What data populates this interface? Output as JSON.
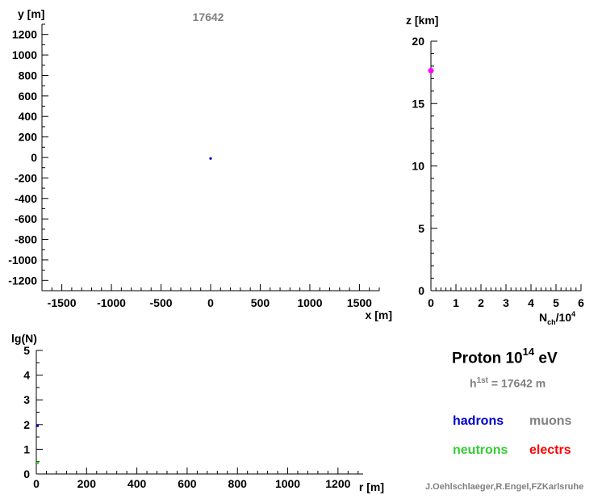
{
  "chart_data": [
    {
      "type": "scatter",
      "panel": "xy-footprint",
      "title": "17642",
      "xlabel": "x [m]",
      "ylabel": "y [m]",
      "xlim": [
        -1700,
        1700
      ],
      "ylim": [
        -1300,
        1300
      ],
      "x_ticks": [
        -1500,
        -1000,
        -500,
        0,
        500,
        1000,
        1500
      ],
      "y_ticks": [
        1200,
        1000,
        800,
        600,
        400,
        200,
        0,
        -200,
        -400,
        -600,
        -800,
        -1000,
        -1200
      ],
      "points": [
        {
          "x": 0,
          "y": -10,
          "color": "#0000cc"
        }
      ]
    },
    {
      "type": "scatter",
      "panel": "longitudinal",
      "xlabel_main": "N",
      "xlabel_sub": "ch",
      "xlabel_tail": "/10",
      "xlabel_sup": "4",
      "ylabel": "z [km]",
      "xlim": [
        0,
        6
      ],
      "ylim": [
        0,
        20
      ],
      "x_ticks": [
        0,
        1,
        2,
        3,
        4,
        5,
        6
      ],
      "y_ticks": [
        0,
        5,
        10,
        15,
        20
      ],
      "points": [
        {
          "x": 0.0,
          "y": 17.64,
          "color": "#ff00ff"
        }
      ]
    },
    {
      "type": "scatter",
      "panel": "lateral",
      "xlabel": "r [m]",
      "ylabel": "lg(N)",
      "xlim": [
        0,
        1300
      ],
      "ylim": [
        0,
        5
      ],
      "x_ticks": [
        0,
        200,
        400,
        600,
        800,
        1000,
        1200
      ],
      "y_ticks": [
        0,
        1,
        2,
        3,
        4,
        5
      ],
      "points": [
        {
          "x": 5,
          "y": 1.95,
          "color": "#0000cc"
        },
        {
          "x": 5,
          "y": 0.45,
          "color": "#33cc33"
        }
      ]
    }
  ],
  "info": {
    "primary": "Proton 10",
    "energy_exp": "14",
    "energy_unit": "eV",
    "h_prefix": "h",
    "h_sup": "1st",
    "h_value": "= 17642 m"
  },
  "legend": [
    {
      "label": "hadrons",
      "color": "#0000cc"
    },
    {
      "label": "muons",
      "color": "#808080"
    },
    {
      "label": "neutrons",
      "color": "#33cc33"
    },
    {
      "label": "electrs",
      "color": "#ff0000"
    }
  ],
  "credit": "J.Oehlschlaeger,R.Engel,FZKarlsruhe"
}
